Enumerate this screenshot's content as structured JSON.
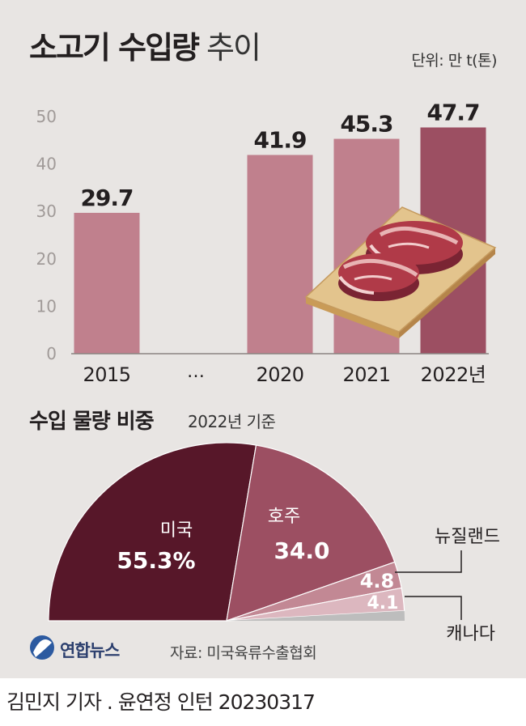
{
  "title": {
    "bold": "소고기 수입량",
    "light": "추이"
  },
  "unit": "단위: 만 t(톤)",
  "subtitle": "수입 물량 비중",
  "subtitle_note": "2022년 기준",
  "logo": "연합뉴스",
  "source": "자료: 미국육류수출협회",
  "byline": "김민지 기자 . 윤연정 인턴  20230317",
  "ellipsis_label": "…",
  "colors": {
    "bar": "#c0808d",
    "bar_highlight": "#9c4f62",
    "us": "#571729",
    "australia": "#9c4f62",
    "nz": "#c28894",
    "canada": "#dcb7bf",
    "other": "#bdbdbd"
  },
  "chart_data": [
    {
      "type": "bar",
      "title": "소고기 수입량 추이",
      "unit": "만 t(톤)",
      "categories": [
        "2015",
        "2020",
        "2021",
        "2022년"
      ],
      "values": [
        29.7,
        41.9,
        45.3,
        47.7
      ],
      "value_labels": [
        "29.7",
        "41.9",
        "45.3",
        "47.7"
      ],
      "y_ticks": [
        0,
        10,
        20,
        30,
        40,
        50
      ],
      "ylim": [
        0,
        50
      ]
    },
    {
      "type": "pie",
      "title": "수입 물량 비중",
      "note": "2022년 기준",
      "slices": [
        {
          "label": "미국",
          "value": 55.3,
          "display": "55.3%"
        },
        {
          "label": "호주",
          "value": 34.0,
          "display": "34.0"
        },
        {
          "label": "뉴질랜드",
          "value": 4.8,
          "display": "4.8"
        },
        {
          "label": "캐나다",
          "value": 4.1,
          "display": "4.1"
        }
      ]
    }
  ]
}
